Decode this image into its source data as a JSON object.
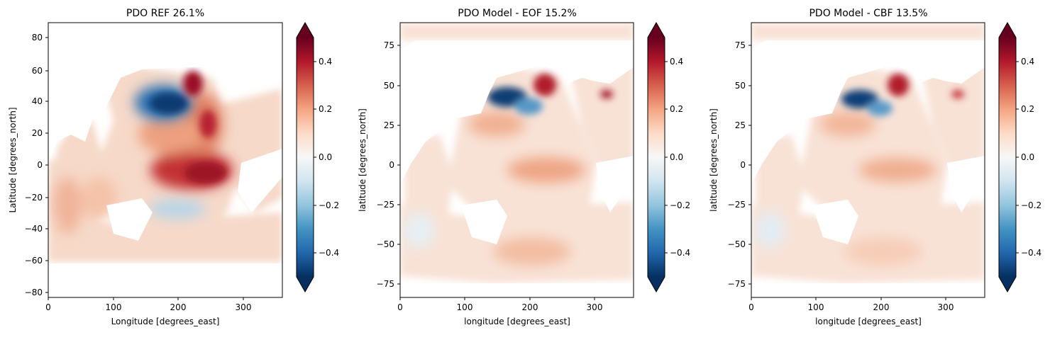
{
  "chart_data": [
    {
      "type": "heatmap",
      "title": "PDO REF 26.1%",
      "xlabel": "Longitude [degrees_east]",
      "ylabel": "Latitude [degrees_north]",
      "xlim": [
        0,
        360
      ],
      "ylim": [
        -90,
        90
      ],
      "xticks": [
        "0",
        "100",
        "200",
        "300"
      ],
      "yticks": [
        "80",
        "60",
        "40",
        "20",
        "0",
        "−20",
        "−40",
        "−60",
        "−80"
      ],
      "colorbar": {
        "cmap": "RdBu_r",
        "range": [
          -0.5,
          0.5
        ],
        "extend": "both",
        "ticks": [
          "0.4",
          "0.2",
          "0.0",
          "−0.2",
          "−0.4"
        ]
      },
      "features": [
        {
          "lon": 195,
          "lat": 38,
          "value": -0.5
        },
        {
          "lon": 250,
          "lat": 50,
          "value": 0.45
        },
        {
          "lon": 250,
          "lat": -2,
          "value": 0.42
        },
        {
          "lon": 290,
          "lat": 10,
          "value": 0.35
        },
        {
          "lon": 200,
          "lat": 15,
          "value": 0.22
        },
        {
          "lon": 80,
          "lat": -20,
          "value": 0.15
        },
        {
          "lon": 210,
          "lat": -30,
          "value": -0.15
        }
      ]
    },
    {
      "type": "heatmap",
      "title": "PDO Model - EOF 15.2%",
      "xlabel": "longitude [degrees_east]",
      "ylabel": "latitude [degrees_north]",
      "xlim": [
        0,
        360
      ],
      "ylim": [
        -90,
        90
      ],
      "xticks": [
        "0",
        "100",
        "200",
        "300"
      ],
      "yticks": [
        "75",
        "50",
        "25",
        "0",
        "−25",
        "−50",
        "−75"
      ],
      "colorbar": {
        "cmap": "RdBu_r",
        "range": [
          -0.5,
          0.5
        ],
        "extend": "both",
        "ticks": [
          "0.4",
          "0.2",
          "0.0",
          "−0.2",
          "−0.4"
        ]
      },
      "features": [
        {
          "lon": 160,
          "lat": 42,
          "value": -0.5
        },
        {
          "lon": 215,
          "lat": 52,
          "value": 0.45
        },
        {
          "lon": 320,
          "lat": 45,
          "value": 0.4
        },
        {
          "lon": 245,
          "lat": 0,
          "value": 0.25
        },
        {
          "lon": 180,
          "lat": 25,
          "value": 0.2
        },
        {
          "lon": 220,
          "lat": -55,
          "value": 0.15
        }
      ]
    },
    {
      "type": "heatmap",
      "title": "PDO Model - CBF 13.5%",
      "xlabel": "longitude [degrees_east]",
      "ylabel": "latitude [degrees_north]",
      "xlim": [
        0,
        360
      ],
      "ylim": [
        -90,
        90
      ],
      "xticks": [
        "0",
        "100",
        "200",
        "300"
      ],
      "yticks": [
        "75",
        "50",
        "25",
        "0",
        "−25",
        "−50",
        "−75"
      ],
      "colorbar": {
        "cmap": "RdBu_r",
        "range": [
          -0.5,
          0.5
        ],
        "extend": "both",
        "ticks": [
          "0.4",
          "0.2",
          "0.0",
          "−0.2",
          "−0.4"
        ]
      },
      "features": [
        {
          "lon": 165,
          "lat": 42,
          "value": -0.5
        },
        {
          "lon": 220,
          "lat": 52,
          "value": 0.45
        },
        {
          "lon": 320,
          "lat": 45,
          "value": 0.4
        },
        {
          "lon": 245,
          "lat": 0,
          "value": 0.22
        },
        {
          "lon": 180,
          "lat": 25,
          "value": 0.18
        },
        {
          "lon": 230,
          "lat": -55,
          "value": 0.1
        }
      ]
    }
  ]
}
